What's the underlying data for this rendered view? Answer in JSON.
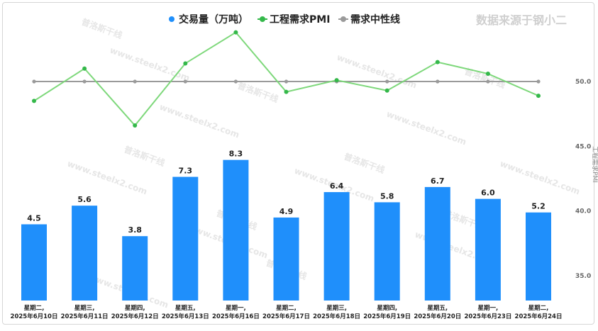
{
  "brand": "数据来源于钢小二",
  "watermark": "www.steelx2.com",
  "watermark_logo": "普洛斯干线",
  "colors": {
    "bar": "#1f8ffb",
    "pmi_line": "#7ed87b",
    "pmi_point": "#34b84a",
    "mid_line": "#9a9a9a",
    "text": "#222222"
  },
  "chart_data": {
    "type": "bar",
    "categories": [
      [
        "星期二,",
        "2025年6月10日"
      ],
      [
        "星期三,",
        "2025年6月11日"
      ],
      [
        "星期四,",
        "2025年6月12日"
      ],
      [
        "星期五,",
        "2025年6月13日"
      ],
      [
        "星期一,",
        "2025年6月16日"
      ],
      [
        "星期二,",
        "2025年6月17日"
      ],
      [
        "星期三,",
        "2025年6月18日"
      ],
      [
        "星期四,",
        "2025年6月19日"
      ],
      [
        "星期五,",
        "2025年6月20日"
      ],
      [
        "星期一,",
        "2025年6月23日"
      ],
      [
        "星期二,",
        "2025年6月24日"
      ]
    ],
    "series": [
      {
        "name": "交易量（万吨）",
        "type": "bar",
        "values": [
          4.5,
          5.6,
          3.8,
          7.3,
          8.3,
          4.9,
          6.4,
          5.8,
          6.7,
          6.0,
          5.2
        ],
        "labels": [
          "4.5",
          "5.6",
          "3.8",
          "7.3",
          "8.3",
          "4.9",
          "6.4",
          "5.8",
          "6.7",
          "6.0",
          "5.2"
        ]
      },
      {
        "name": "工程需求PMI",
        "type": "line",
        "axis": "right",
        "values": [
          48.5,
          51.0,
          46.6,
          51.4,
          53.8,
          49.2,
          50.1,
          49.3,
          51.5,
          50.6,
          48.9
        ]
      },
      {
        "name": "需求中性线",
        "type": "line",
        "axis": "right",
        "values": [
          50.0,
          50.0,
          50.0,
          50.0,
          50.0,
          50.0,
          50.0,
          50.0,
          50.0,
          50.0,
          50.0
        ]
      }
    ],
    "right_axis": {
      "label": "工程需求PMI",
      "ticks": [
        "50.0",
        "45.0",
        "40.0",
        "35.0"
      ],
      "tick_values": [
        50,
        45,
        40,
        35
      ],
      "range": [
        32.6,
        55.0
      ]
    },
    "left_axis": {
      "range": [
        0,
        10.2
      ]
    },
    "legend_position": "top-center",
    "grid": false
  }
}
